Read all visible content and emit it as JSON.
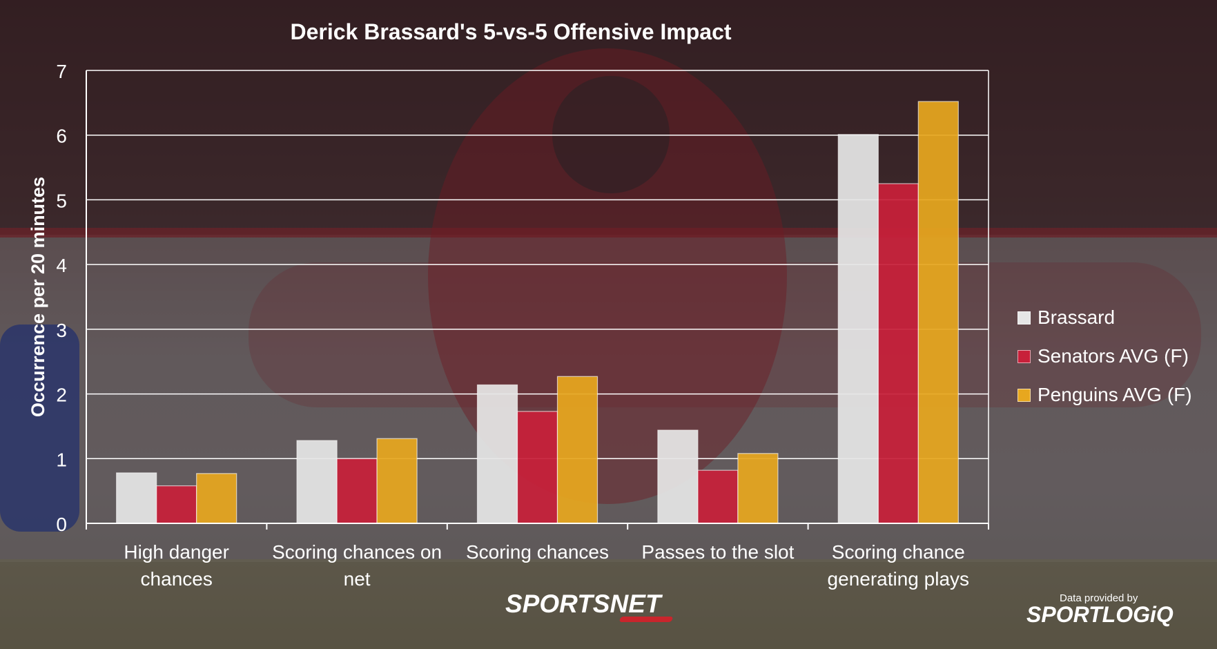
{
  "colors": {
    "brassard": "#e6e6e6",
    "senators": "#c8203a",
    "penguins": "#e7a71f",
    "axis": "#ffffff",
    "text": "#ffffff"
  },
  "chart_data": {
    "type": "bar",
    "title": "Derick Brassard's 5-vs-5 Offensive Impact",
    "xlabel": "",
    "ylabel": "Occurrence per 20 minutes",
    "ylim": [
      0,
      7
    ],
    "yticks": [
      0,
      1,
      2,
      3,
      4,
      5,
      6,
      7
    ],
    "grid": true,
    "legend_position": "right",
    "categories": [
      [
        "High danger",
        "chances"
      ],
      [
        "Scoring chances on",
        "net"
      ],
      [
        "Scoring chances"
      ],
      [
        "Passes to the slot"
      ],
      [
        "Scoring chance",
        "generating plays"
      ]
    ],
    "series": [
      {
        "name": "Brassard",
        "color": "#e6e6e6",
        "values": [
          0.78,
          1.28,
          2.14,
          1.44,
          6.01
        ]
      },
      {
        "name": "Senators AVG (F)",
        "color": "#c8203a",
        "values": [
          0.58,
          1.0,
          1.73,
          0.82,
          5.25
        ]
      },
      {
        "name": "Penguins AVG (F)",
        "color": "#e7a71f",
        "values": [
          0.77,
          1.31,
          2.27,
          1.08,
          6.52
        ]
      }
    ]
  },
  "branding": {
    "sportsnet": "SPORTSNET",
    "provider_note": "Data provided by",
    "provider_logo": "SPORTLOGiQ"
  }
}
